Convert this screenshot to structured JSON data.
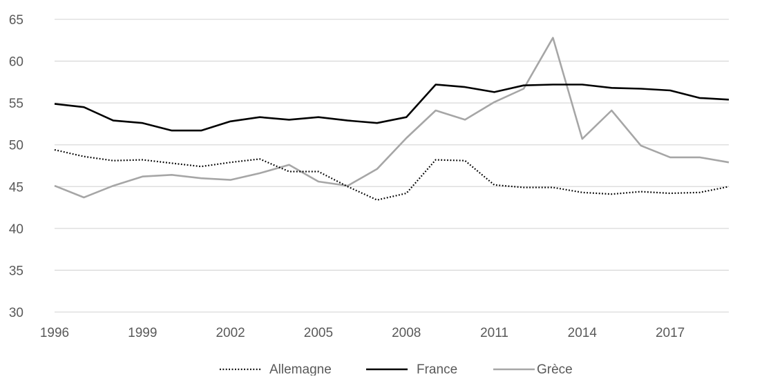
{
  "chart_data": {
    "type": "line",
    "title": "",
    "xlabel": "",
    "ylabel": "",
    "x": [
      1996,
      1997,
      1998,
      1999,
      2000,
      2001,
      2002,
      2003,
      2004,
      2005,
      2006,
      2007,
      2008,
      2009,
      2010,
      2011,
      2012,
      2013,
      2014,
      2015,
      2016,
      2017,
      2018,
      2019
    ],
    "x_ticks": [
      "1996",
      "1999",
      "2002",
      "2005",
      "2008",
      "2011",
      "2014",
      "2017"
    ],
    "y_ticks": [
      "30",
      "35",
      "40",
      "45",
      "50",
      "55",
      "60",
      "65"
    ],
    "ylim": [
      30,
      65
    ],
    "grid": true,
    "legend_position": "bottom",
    "series": [
      {
        "name": "Allemagne",
        "style": "dotted",
        "color": "#000000",
        "values": [
          49.4,
          48.6,
          48.1,
          48.2,
          47.8,
          47.4,
          47.9,
          48.3,
          46.8,
          46.8,
          45.0,
          43.4,
          44.2,
          48.2,
          48.1,
          45.2,
          44.9,
          44.9,
          44.3,
          44.1,
          44.4,
          44.2,
          44.3,
          45.0
        ]
      },
      {
        "name": "France",
        "style": "solid",
        "color": "#000000",
        "values": [
          54.9,
          54.5,
          52.9,
          52.6,
          51.7,
          51.7,
          52.8,
          53.3,
          53.0,
          53.3,
          52.9,
          52.6,
          53.3,
          57.2,
          56.9,
          56.3,
          57.1,
          57.2,
          57.2,
          56.8,
          56.7,
          56.5,
          55.6,
          55.4
        ]
      },
      {
        "name": "Grèce",
        "style": "solid",
        "color": "#a6a6a6",
        "values": [
          45.1,
          43.7,
          45.1,
          46.2,
          46.4,
          46.0,
          45.8,
          46.6,
          47.6,
          45.6,
          45.1,
          47.1,
          50.8,
          54.1,
          53.0,
          55.1,
          56.7,
          62.8,
          50.7,
          54.1,
          49.9,
          48.5,
          48.5,
          47.9
        ]
      }
    ]
  }
}
